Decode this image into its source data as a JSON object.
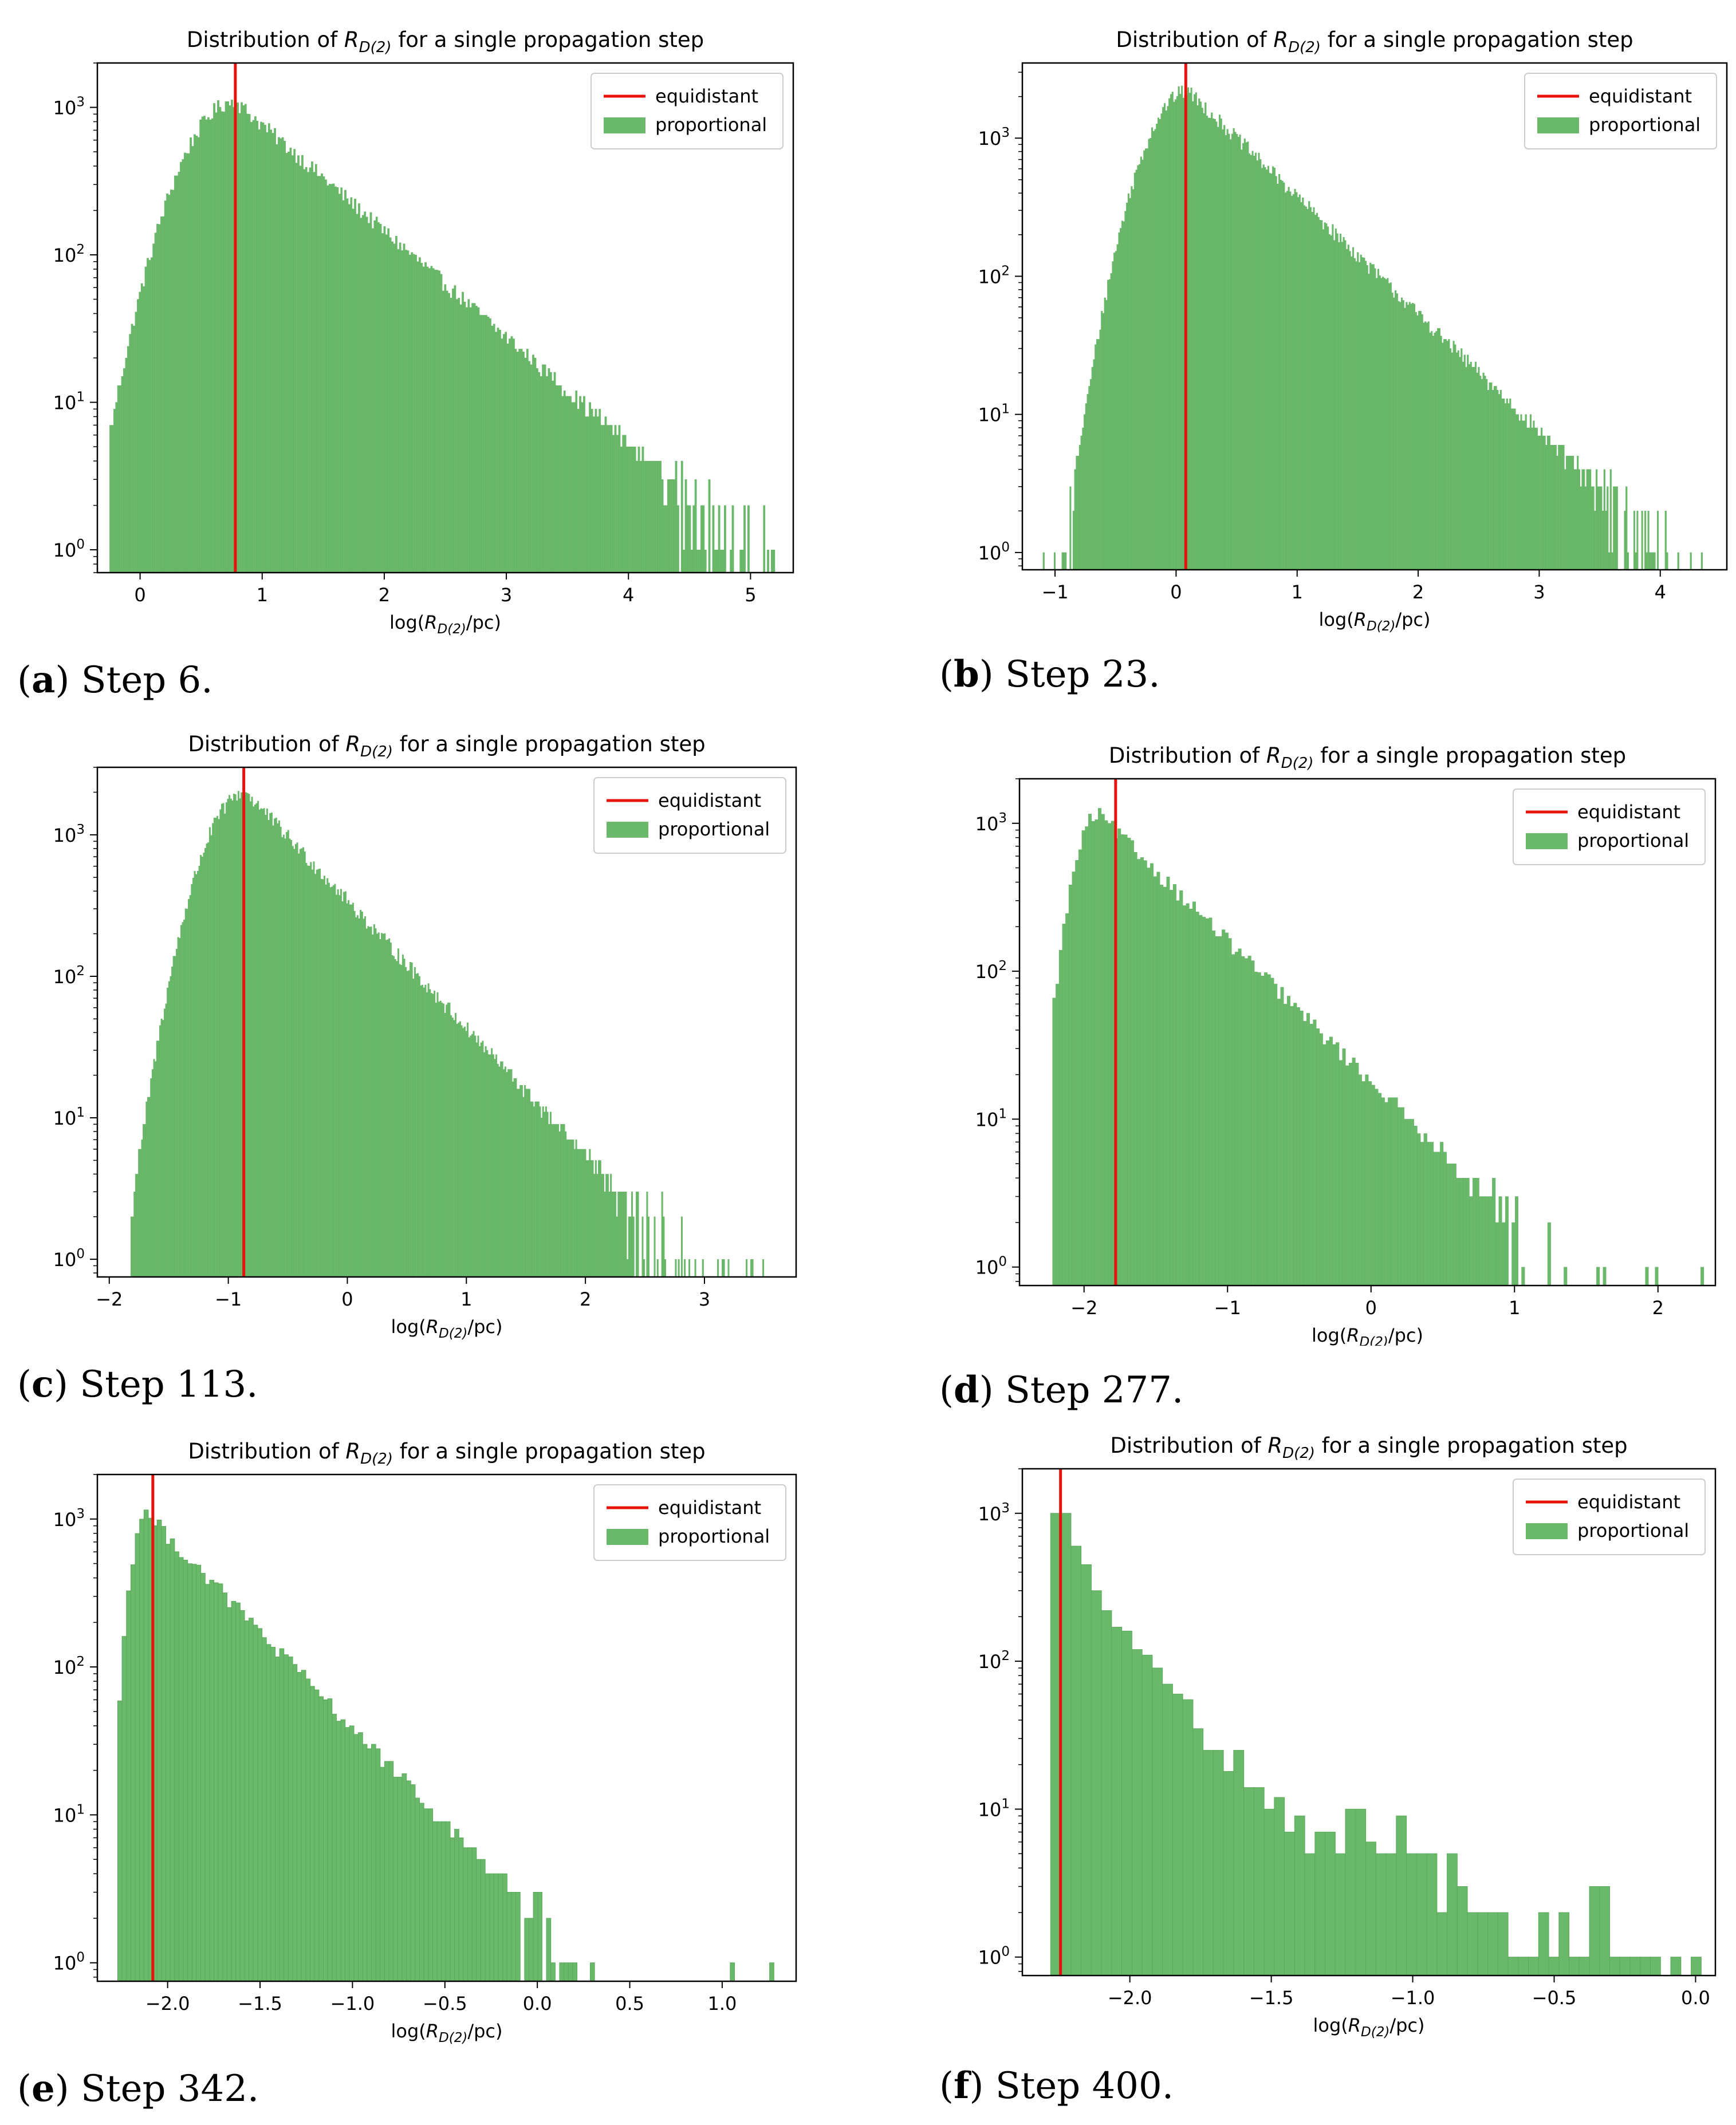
{
  "chart_data": [
    {
      "type": "bar",
      "title_prefix": "Distribution of ",
      "title_var": "R",
      "title_sub": "D(2)",
      "title_suffix": " for a single propagation step",
      "xlabel_prefix": "log(",
      "xlabel_var": "R",
      "xlabel_sub": "D(2)",
      "xlabel_suffix": "/pc)",
      "ylabel": "",
      "yscale": "log",
      "xlim": [
        -0.35,
        5.35
      ],
      "ylim": [
        0.7,
        2000
      ],
      "xticks": [
        0,
        1,
        2,
        3,
        4,
        5
      ],
      "xtick_labels": [
        "0",
        "1",
        "2",
        "3",
        "4",
        "5"
      ],
      "yticks": [
        1,
        10,
        100,
        1000
      ],
      "ytick_base": "10",
      "ytick_exps": [
        "0",
        "1",
        "2",
        "3"
      ],
      "equidistant_x": 0.78,
      "legend": [
        "equidistant",
        "proportional"
      ],
      "legend_loc": "upper right",
      "bar_color": "#6ab96a",
      "line_color": "#e8120c",
      "hist_profile": {
        "x_min": -0.25,
        "x_max": 5.2,
        "peak_x": 0.78,
        "peak_count": 1100,
        "rise": 0.55,
        "decay_per_unit": 0.72,
        "bins": 340
      },
      "caption_letter": "a",
      "caption_text": " Step 6."
    },
    {
      "type": "bar",
      "title_prefix": "Distribution of ",
      "title_var": "R",
      "title_sub": "D(2)",
      "title_suffix": " for a single propagation step",
      "xlabel_prefix": "log(",
      "xlabel_var": "R",
      "xlabel_sub": "D(2)",
      "xlabel_suffix": "/pc)",
      "ylabel": "",
      "yscale": "log",
      "xlim": [
        -1.27,
        4.55
      ],
      "ylim": [
        0.75,
        3500
      ],
      "xticks": [
        -1,
        0,
        1,
        2,
        3,
        4
      ],
      "xtick_labels": [
        "−1",
        "0",
        "1",
        "2",
        "3",
        "4"
      ],
      "yticks": [
        1,
        10,
        100,
        1000
      ],
      "ytick_base": "10",
      "ytick_exps": [
        "0",
        "1",
        "2",
        "3"
      ],
      "equidistant_x": 0.08,
      "legend": [
        "equidistant",
        "proportional"
      ],
      "legend_loc": "upper right",
      "bar_color": "#6ab96a",
      "line_color": "#e8120c",
      "hist_profile": {
        "x_min": -1.1,
        "x_max": 4.35,
        "peak_x": 0.1,
        "peak_count": 2200,
        "rise": 0.45,
        "decay_per_unit": 0.85,
        "bins": 420
      },
      "caption_letter": "b",
      "caption_text": " Step 23."
    },
    {
      "type": "bar",
      "title_prefix": "Distribution of ",
      "title_var": "R",
      "title_sub": "D(2)",
      "title_suffix": " for a single propagation step",
      "xlabel_prefix": "log(",
      "xlabel_var": "R",
      "xlabel_sub": "D(2)",
      "xlabel_suffix": "/pc)",
      "ylabel": "",
      "yscale": "log",
      "xlim": [
        -2.1,
        3.77
      ],
      "ylim": [
        0.75,
        3000
      ],
      "xticks": [
        -2,
        -1,
        0,
        1,
        2,
        3
      ],
      "xtick_labels": [
        "−2",
        "−1",
        "0",
        "1",
        "2",
        "3"
      ],
      "yticks": [
        1,
        10,
        100,
        1000
      ],
      "ytick_base": "10",
      "ytick_exps": [
        "0",
        "1",
        "2",
        "3"
      ],
      "equidistant_x": -0.87,
      "legend": [
        "equidistant",
        "proportional"
      ],
      "legend_loc": "upper right",
      "bar_color": "#6ab96a",
      "line_color": "#e8120c",
      "hist_profile": {
        "x_min": -1.82,
        "x_max": 3.5,
        "peak_x": -0.85,
        "peak_count": 2000,
        "rise": 0.45,
        "decay_per_unit": 0.9,
        "bins": 420
      },
      "caption_letter": "c",
      "caption_text": " Step 113."
    },
    {
      "type": "bar",
      "title_prefix": "Distribution of ",
      "title_var": "R",
      "title_sub": "D(2)",
      "title_suffix": " for a single propagation step",
      "xlabel_prefix": "log(",
      "xlabel_var": "R",
      "xlabel_sub": "D(2)",
      "xlabel_suffix": "/pc)",
      "ylabel": "",
      "yscale": "log",
      "xlim": [
        -2.45,
        2.4
      ],
      "ylim": [
        0.75,
        2000
      ],
      "xticks": [
        -2,
        -1,
        0,
        1,
        2
      ],
      "xtick_labels": [
        "−2",
        "−1",
        "0",
        "1",
        "2"
      ],
      "yticks": [
        1,
        10,
        100,
        1000
      ],
      "ytick_base": "10",
      "ytick_exps": [
        "0",
        "1",
        "2",
        "3"
      ],
      "equidistant_x": -1.78,
      "legend": [
        "equidistant",
        "proportional"
      ],
      "legend_loc": "upper right",
      "bar_color": "#6ab96a",
      "line_color": "#e8120c",
      "hist_profile": {
        "x_min": -2.22,
        "x_max": 2.32,
        "peak_x": -1.9,
        "peak_count": 1150,
        "rise": 0.22,
        "decay_per_unit": 0.95,
        "bins": 200
      },
      "caption_letter": "d",
      "caption_text": " Step 277."
    },
    {
      "type": "bar",
      "title_prefix": "Distribution of ",
      "title_var": "R",
      "title_sub": "D(2)",
      "title_suffix": " for a single propagation step",
      "xlabel_prefix": "log(",
      "xlabel_var": "R",
      "xlabel_sub": "D(2)",
      "xlabel_suffix": "/pc)",
      "ylabel": "",
      "yscale": "log",
      "xlim": [
        -2.38,
        1.4
      ],
      "ylim": [
        0.75,
        2000
      ],
      "xticks": [
        -2.0,
        -1.5,
        -1.0,
        -0.5,
        0.0,
        0.5,
        1.0
      ],
      "xtick_labels": [
        "−2.0",
        "−1.5",
        "−1.0",
        "−0.5",
        "0.0",
        "0.5",
        "1.0"
      ],
      "yticks": [
        1,
        10,
        100,
        1000
      ],
      "ytick_base": "10",
      "ytick_exps": [
        "0",
        "1",
        "2",
        "3"
      ],
      "equidistant_x": -2.08,
      "legend": [
        "equidistant",
        "proportional"
      ],
      "legend_loc": "upper right",
      "bar_color": "#6ab96a",
      "line_color": "#e8120c",
      "hist_profile": {
        "x_min": -2.27,
        "x_max": 1.28,
        "peak_x": -2.12,
        "peak_count": 1100,
        "rise": 0.1,
        "decay_per_unit": 1.3,
        "bins": 150
      },
      "caption_letter": "e",
      "caption_text": " Step 342."
    },
    {
      "type": "bar",
      "title_prefix": "Distribution of ",
      "title_var": "R",
      "title_sub": "D(2)",
      "title_suffix": " for a single propagation step",
      "xlabel_prefix": "log(",
      "xlabel_var": "R",
      "xlabel_sub": "D(2)",
      "xlabel_suffix": "/pc)",
      "ylabel": "",
      "yscale": "log",
      "xlim": [
        -2.38,
        0.07
      ],
      "ylim": [
        0.75,
        2000
      ],
      "xticks": [
        -2.0,
        -1.5,
        -1.0,
        -0.5,
        0.0
      ],
      "xtick_labels": [
        "−2.0",
        "−1.5",
        "−1.0",
        "−0.5",
        "0.0"
      ],
      "yticks": [
        1,
        10,
        100,
        1000
      ],
      "ytick_base": "10",
      "ytick_exps": [
        "0",
        "1",
        "2",
        "3"
      ],
      "equidistant_x": -2.245,
      "legend": [
        "equidistant",
        "proportional"
      ],
      "legend_loc": "upper right",
      "bar_color": "#6ab96a",
      "line_color": "#e8120c",
      "hist_counts": [
        1000,
        1000,
        600,
        450,
        300,
        220,
        170,
        160,
        120,
        110,
        90,
        70,
        60,
        55,
        35,
        25,
        25,
        18,
        25,
        14,
        14,
        10,
        12,
        7,
        9,
        5,
        7,
        7,
        5,
        10,
        10,
        6,
        5,
        5,
        9,
        5,
        5,
        5,
        2,
        5,
        3,
        2,
        2,
        2,
        2,
        1,
        1,
        1,
        2,
        1,
        2,
        1,
        1,
        3,
        3,
        1,
        1,
        1,
        1,
        1,
        0,
        1,
        0,
        1
      ],
      "hist_x_min": -2.28,
      "hist_x_max": 0.02,
      "caption_letter": "f",
      "caption_text": " Step 400."
    }
  ]
}
